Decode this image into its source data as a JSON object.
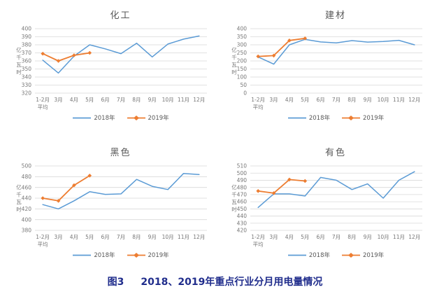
{
  "figure_caption": {
    "label": "图3",
    "text": "2018、2019年重点行业分月用电量情况",
    "color": "#202D8C"
  },
  "colors": {
    "series_2018": "#5B9BD5",
    "series_2019": "#ED7D31",
    "grid": "#D9D9D9",
    "axis_text": "#767676",
    "title_text": "#595959",
    "background": "#FFFFFF"
  },
  "chart_data": [
    {
      "type": "line",
      "title": "化工",
      "ylabel": "亿千瓦时",
      "ylim": [
        320,
        400
      ],
      "y_step": 10,
      "grid": true,
      "legend_position": "bottom",
      "categories": [
        "1-2月\n平均",
        "3月",
        "4月",
        "5月",
        "6月",
        "7月",
        "8月",
        "9月",
        "10月",
        "11月",
        "12月"
      ],
      "series": [
        {
          "name": "2018年",
          "color": "#5B9BD5",
          "marker": "none",
          "values": [
            361,
            345,
            366,
            380,
            375,
            369,
            382,
            365,
            381,
            387,
            391
          ]
        },
        {
          "name": "2019年",
          "color": "#ED7D31",
          "marker": "diamond",
          "values": [
            369,
            360,
            367,
            370
          ]
        }
      ]
    },
    {
      "type": "line",
      "title": "建材",
      "ylabel": "亿千瓦时",
      "ylim": [
        0,
        400
      ],
      "y_step": 50,
      "grid": true,
      "legend_position": "bottom",
      "categories": [
        "1-2月\n平均",
        "3月",
        "4月",
        "5月",
        "6月",
        "7月",
        "8月",
        "9月",
        "10月",
        "11月",
        "12月"
      ],
      "series": [
        {
          "name": "2018年",
          "color": "#5B9BD5",
          "marker": "none",
          "values": [
            225,
            180,
            300,
            334,
            318,
            312,
            326,
            317,
            321,
            328,
            300
          ]
        },
        {
          "name": "2019年",
          "color": "#ED7D31",
          "marker": "diamond",
          "values": [
            228,
            233,
            327,
            340
          ]
        }
      ]
    },
    {
      "type": "line",
      "title": "黑色",
      "ylabel": "亿千瓦时",
      "ylim": [
        380,
        500
      ],
      "y_step": 20,
      "grid": true,
      "legend_position": "bottom",
      "categories": [
        "1-2月\n平均",
        "3月",
        "4月",
        "5月",
        "6月",
        "7月",
        "8月",
        "9月",
        "10月",
        "11月",
        "12月"
      ],
      "series": [
        {
          "name": "2018年",
          "color": "#5B9BD5",
          "marker": "none",
          "values": [
            428,
            420,
            435,
            452,
            447,
            448,
            475,
            462,
            456,
            486,
            484
          ]
        },
        {
          "name": "2019年",
          "color": "#ED7D31",
          "marker": "diamond",
          "values": [
            440,
            435,
            464,
            482
          ]
        }
      ]
    },
    {
      "type": "line",
      "title": "有色",
      "ylabel": "亿千瓦时",
      "ylim": [
        420,
        510
      ],
      "y_step": 10,
      "grid": true,
      "legend_position": "bottom",
      "categories": [
        "1-2月\n平均",
        "3月",
        "4月",
        "5月",
        "6月",
        "7月",
        "8月",
        "9月",
        "10月",
        "11月",
        "12月"
      ],
      "series": [
        {
          "name": "2018年",
          "color": "#5B9BD5",
          "marker": "none",
          "values": [
            452,
            471,
            471,
            468,
            494,
            490,
            477,
            485,
            465,
            490,
            502
          ]
        },
        {
          "name": "2019年",
          "color": "#ED7D31",
          "marker": "diamond",
          "values": [
            475,
            472,
            491,
            489
          ]
        }
      ]
    }
  ]
}
